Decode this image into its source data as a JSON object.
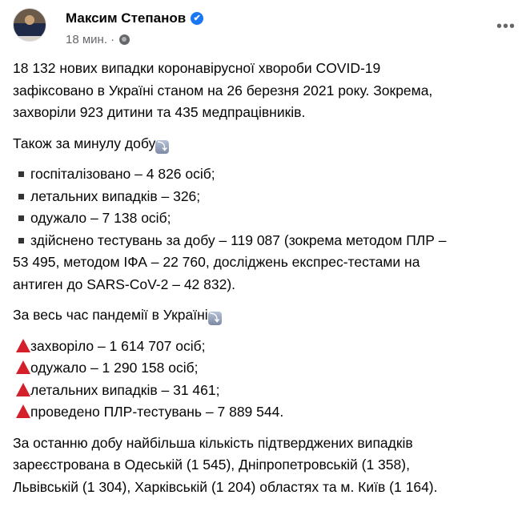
{
  "author": {
    "name": "Максим Степанов",
    "verified": true,
    "time": "18 мин.",
    "privacy_icon": "globe-icon"
  },
  "post": {
    "intro_lines": [
      "18 132 нових випадки коронавірусної хвороби COVID-19",
      "зафіксовано в Україні станом на 26 березня 2021 року. Зокрема,",
      "захворіли 923 дитини та 435 медпрацівників."
    ],
    "daily_heading": "Також за минулу добу",
    "daily_items": [
      "госпіталізовано – 4 826 осіб;",
      "летальних випадків – 326;",
      "одужало – 7 138 осіб;",
      "здійснено тестувань за добу – 119 087 (зокрема методом ПЛР –"
    ],
    "daily_cont": [
      "53 495, методом ІФА – 22 760, досліджень експрес-тестами на",
      "антиген до SARS-CoV-2 – 42 832)."
    ],
    "total_heading": "За весь час пандемії в Україні",
    "total_items": [
      "захворіло – 1 614 707 осіб;",
      "одужало – 1 290 158 осіб;",
      "летальних випадків – 31 461;",
      "проведено ПЛР-тестувань – 7 889 544."
    ],
    "regions_lines": [
      "За останню добу найбільша кількість підтверджених випадків",
      "зареєстрована в Одеській (1 545), Дніпропетровській (1 358),",
      "Львівській (1 304), Харківській (1 204) областях та м. Київ (1 164)."
    ]
  },
  "icons": {
    "down_arrow_emoji": "⤵",
    "verified": "✔",
    "more": "•••"
  },
  "colors": {
    "verified": "#1877f2",
    "triangle": "#d4202a",
    "secondary_text": "#65676b"
  }
}
